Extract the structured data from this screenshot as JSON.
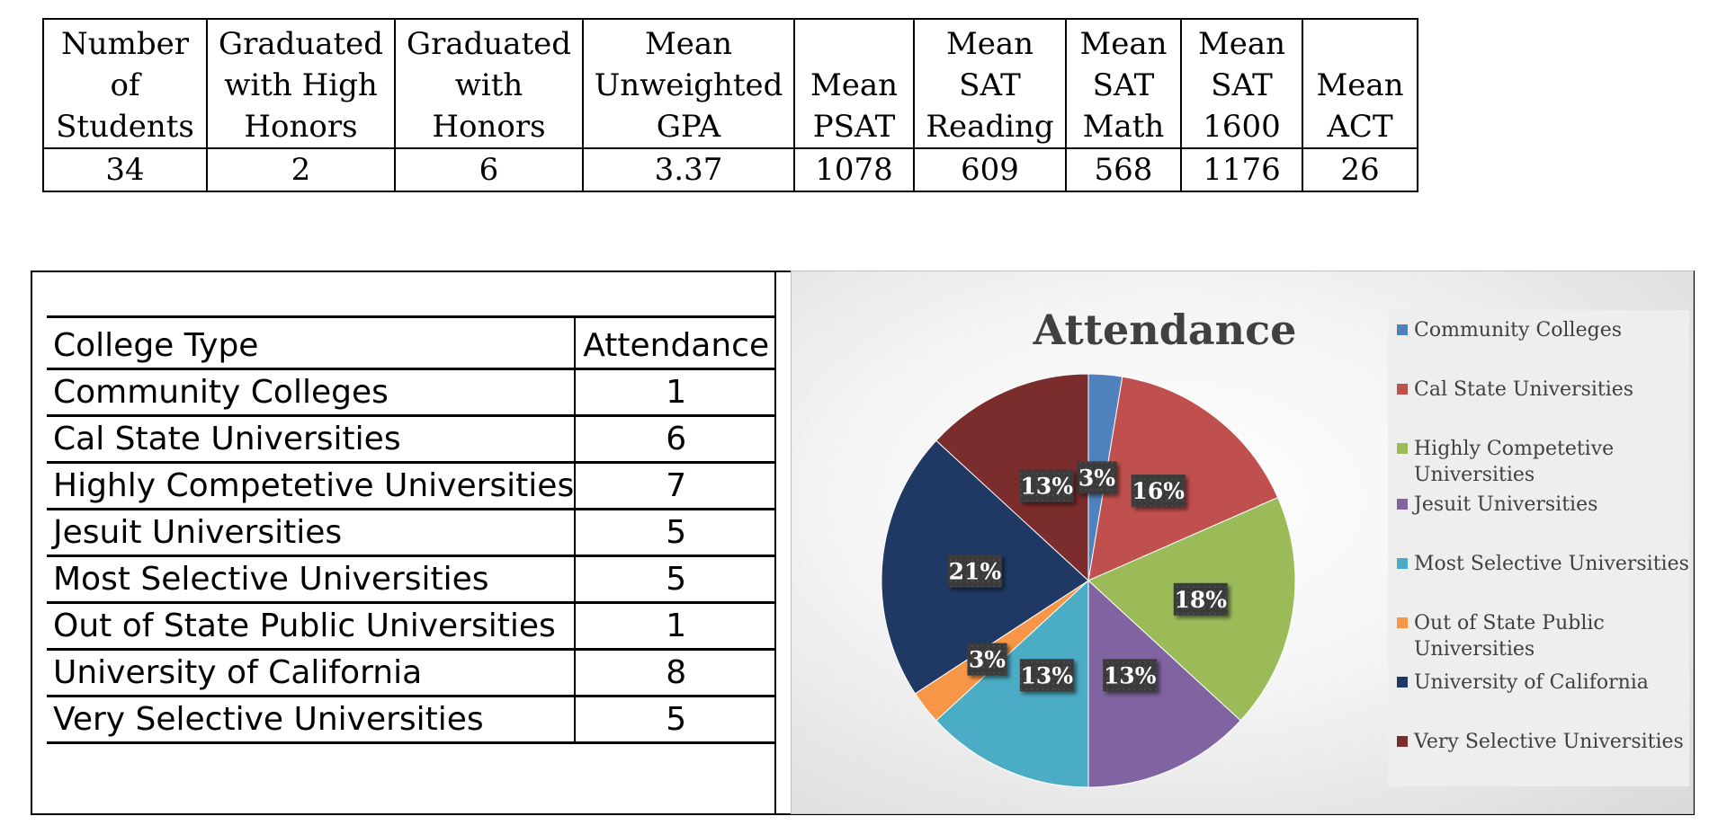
{
  "stats": {
    "headers": [
      [
        "Number",
        "of",
        "Students"
      ],
      [
        "Graduated",
        "with High",
        "Honors"
      ],
      [
        "Graduated",
        "with",
        "Honors"
      ],
      [
        "Mean",
        "Unweighted",
        "GPA"
      ],
      [
        "Mean",
        "PSAT"
      ],
      [
        "Mean",
        "SAT",
        "Reading"
      ],
      [
        "Mean",
        "SAT",
        "Math"
      ],
      [
        "Mean",
        "SAT",
        "1600"
      ],
      [
        "Mean",
        "ACT"
      ]
    ],
    "values": [
      "34",
      "2",
      "6",
      "3.37",
      "1078",
      "609",
      "568",
      "1176",
      "26"
    ]
  },
  "college_table": {
    "header": [
      "College Type",
      "Attendance"
    ],
    "rows": [
      [
        "Community Colleges",
        "1"
      ],
      [
        "Cal State Universities",
        "6"
      ],
      [
        "Highly Competetive Universities",
        "7"
      ],
      [
        "Jesuit Universities",
        "5"
      ],
      [
        "Most Selective Universities",
        "5"
      ],
      [
        "Out of State Public Universities",
        "1"
      ],
      [
        "University of California",
        "8"
      ],
      [
        "Very Selective Universities",
        "5"
      ]
    ]
  },
  "chart_data": {
    "type": "pie",
    "title": "Attendance",
    "legend_position": "right",
    "categories": [
      "Community Colleges",
      "Cal State Universities",
      "Highly Competetive Universities",
      "Jesuit Universities",
      "Most Selective Universities",
      "Out of State Public Universities",
      "University of California",
      "Very Selective Universities"
    ],
    "legend_labels": [
      [
        "Community Colleges"
      ],
      [
        "Cal State Universities"
      ],
      [
        "Highly Competetive",
        "Universities"
      ],
      [
        "Jesuit Universities"
      ],
      [
        "Most Selective Universities"
      ],
      [
        "Out of State Public",
        "Universities"
      ],
      [
        "University of California"
      ],
      [
        "Very Selective Universities"
      ]
    ],
    "values": [
      1,
      6,
      7,
      5,
      5,
      1,
      8,
      5
    ],
    "data_labels": [
      "3%",
      "16%",
      "18%",
      "13%",
      "13%",
      "3%",
      "21%",
      "13%"
    ],
    "colors": [
      "#4f81bd",
      "#c0504d",
      "#9bbb59",
      "#8064a2",
      "#4bacc6",
      "#f79646",
      "#1f3864",
      "#7b2c2c"
    ]
  }
}
